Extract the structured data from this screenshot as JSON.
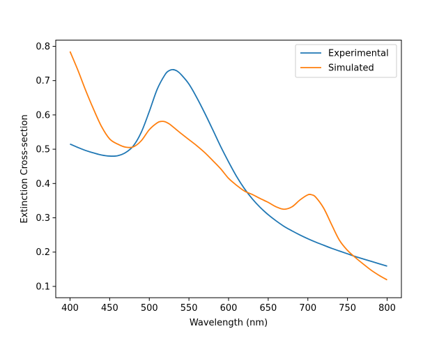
{
  "chart_data": {
    "type": "line",
    "title": "",
    "xlabel": "Wavelength (nm)",
    "ylabel": "Extinction Cross-section",
    "xlim": [
      382,
      818
    ],
    "ylim": [
      0.067,
      0.818
    ],
    "xticks": [
      400,
      450,
      500,
      550,
      600,
      650,
      700,
      750,
      800
    ],
    "yticks": [
      0.1,
      0.2,
      0.3,
      0.4,
      0.5,
      0.6,
      0.7,
      0.8
    ],
    "grid": false,
    "legend_position": "top-right",
    "series": [
      {
        "name": "Experimental",
        "color": "#1f77b4",
        "x": [
          400,
          410,
          420,
          430,
          440,
          450,
          460,
          470,
          480,
          490,
          500,
          510,
          520,
          525,
          530,
          535,
          540,
          550,
          560,
          570,
          580,
          590,
          600,
          610,
          620,
          630,
          640,
          650,
          660,
          670,
          680,
          690,
          700,
          710,
          720,
          730,
          740,
          750,
          760,
          770,
          780,
          790,
          800
        ],
        "y": [
          0.515,
          0.505,
          0.496,
          0.489,
          0.483,
          0.48,
          0.481,
          0.49,
          0.51,
          0.55,
          0.61,
          0.675,
          0.718,
          0.729,
          0.732,
          0.728,
          0.718,
          0.69,
          0.65,
          0.605,
          0.557,
          0.508,
          0.463,
          0.421,
          0.385,
          0.355,
          0.33,
          0.309,
          0.291,
          0.275,
          0.262,
          0.25,
          0.239,
          0.229,
          0.22,
          0.211,
          0.203,
          0.195,
          0.187,
          0.18,
          0.173,
          0.166,
          0.159
        ]
      },
      {
        "name": "Simulated",
        "color": "#ff7f0e",
        "x": [
          400,
          410,
          420,
          430,
          440,
          450,
          460,
          470,
          480,
          490,
          500,
          510,
          515,
          520,
          525,
          530,
          540,
          550,
          560,
          570,
          580,
          590,
          600,
          610,
          620,
          630,
          640,
          650,
          660,
          670,
          680,
          690,
          700,
          705,
          710,
          720,
          730,
          740,
          750,
          760,
          770,
          780,
          790,
          800
        ],
        "y": [
          0.785,
          0.73,
          0.67,
          0.615,
          0.565,
          0.53,
          0.515,
          0.506,
          0.507,
          0.525,
          0.557,
          0.577,
          0.581,
          0.58,
          0.574,
          0.565,
          0.546,
          0.528,
          0.51,
          0.49,
          0.467,
          0.443,
          0.415,
          0.395,
          0.378,
          0.368,
          0.356,
          0.345,
          0.332,
          0.325,
          0.332,
          0.352,
          0.367,
          0.367,
          0.36,
          0.328,
          0.28,
          0.234,
          0.205,
          0.184,
          0.165,
          0.147,
          0.132,
          0.119
        ]
      }
    ]
  }
}
